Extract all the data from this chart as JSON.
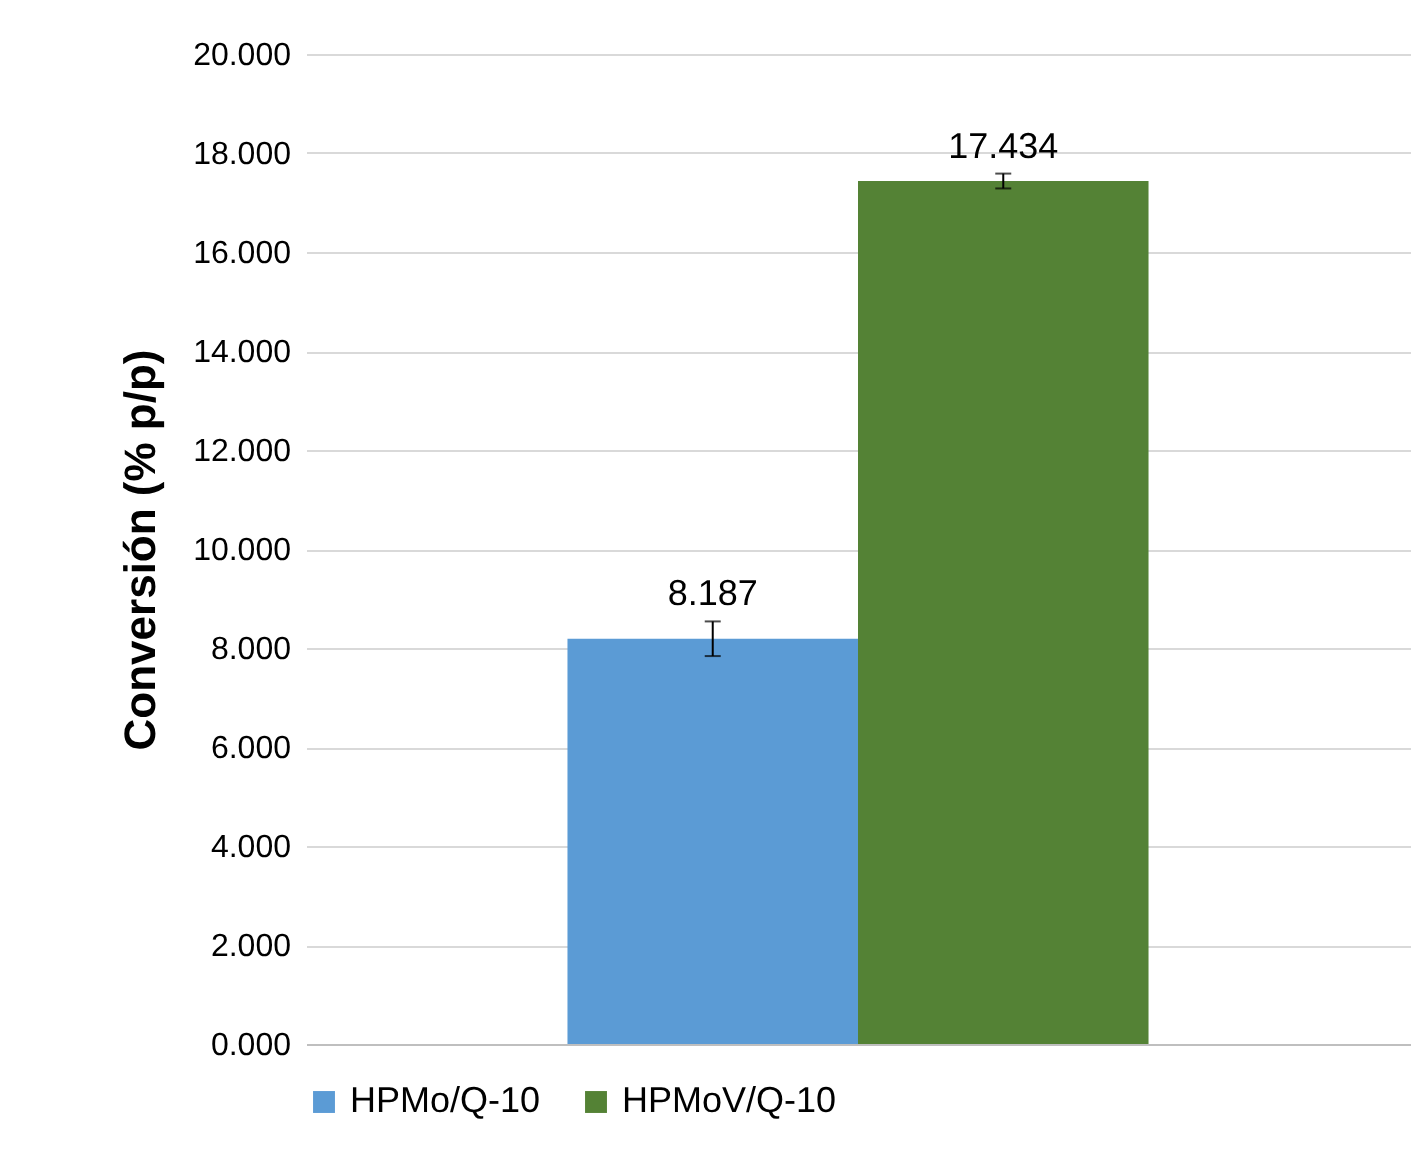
{
  "chart_data": {
    "type": "bar",
    "ylabel": "Conversión (% p/p)",
    "categories": [
      null
    ],
    "series": [
      {
        "name": "HPMo/Q-10",
        "color": "#5b9bd5",
        "values": [
          8.187
        ],
        "errors": [
          0.35
        ]
      },
      {
        "name": "HPMoV/Q-10",
        "color": "#548235",
        "values": [
          17.434
        ],
        "errors": [
          0.15
        ]
      }
    ],
    "ylim": [
      0,
      20
    ],
    "yticks": [
      {
        "value": 0,
        "label": "0.000"
      },
      {
        "value": 2,
        "label": "2.000"
      },
      {
        "value": 4,
        "label": "4.000"
      },
      {
        "value": 6,
        "label": "6.000"
      },
      {
        "value": 8,
        "label": "8.000"
      },
      {
        "value": 10,
        "label": "10.000"
      },
      {
        "value": 12,
        "label": "12.000"
      },
      {
        "value": 14,
        "label": "14.000"
      },
      {
        "value": 16,
        "label": "16.000"
      },
      {
        "value": 18,
        "label": "18.000"
      },
      {
        "value": 20,
        "label": "20.000"
      }
    ],
    "grid": "y",
    "legend": "bottom",
    "data_labels": true
  }
}
